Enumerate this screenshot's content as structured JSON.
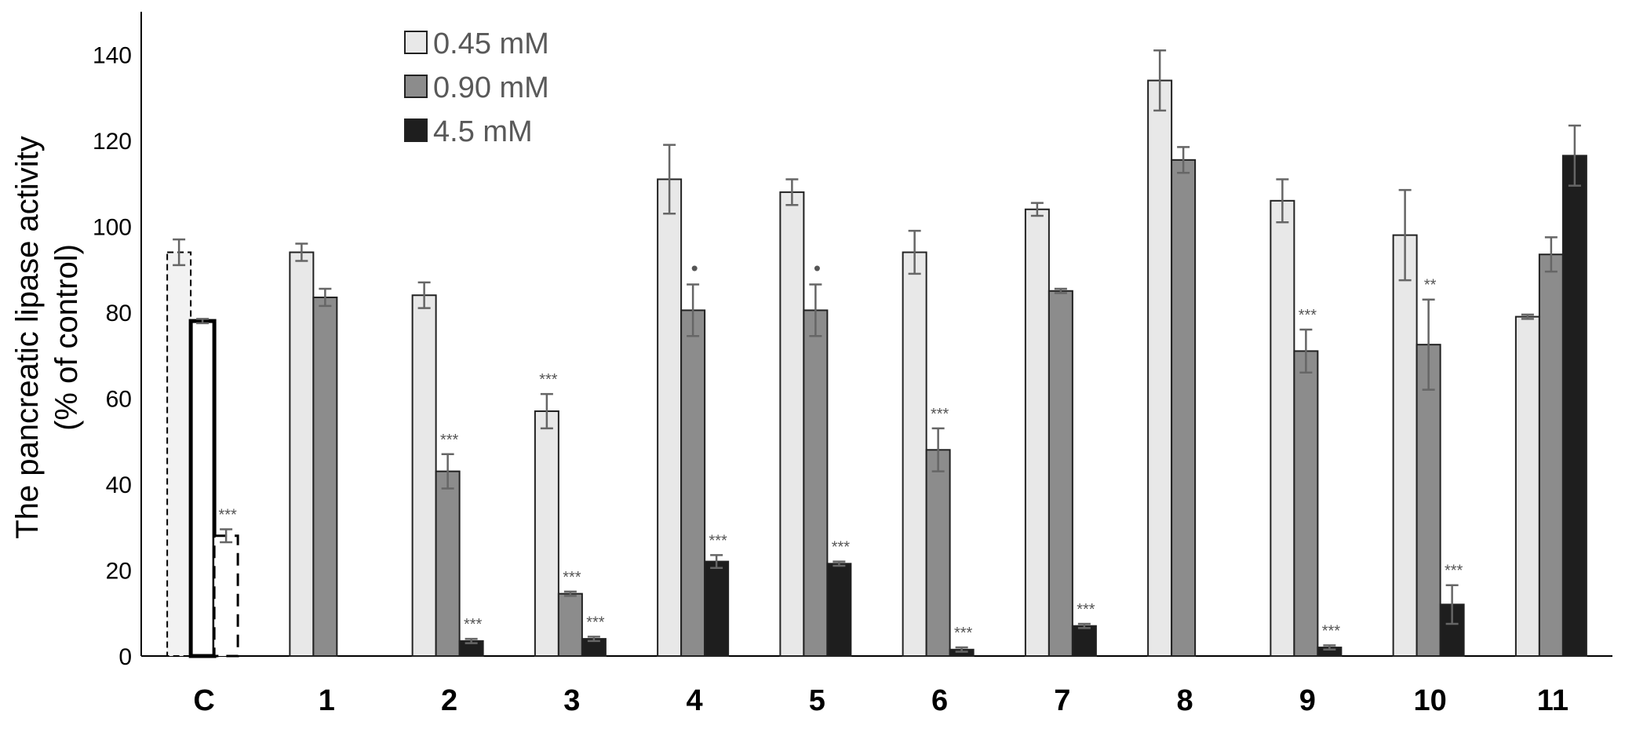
{
  "chart_data": {
    "type": "bar",
    "title": "",
    "ylabel_line1": "The pancreatic lipase activity",
    "ylabel_line2": "(% of control)",
    "xlabel": "",
    "ylim": [
      0,
      150
    ],
    "yticks": [
      0,
      20,
      40,
      60,
      80,
      100,
      120,
      140
    ],
    "grid": false,
    "legend_position": "top-left",
    "categories": [
      "C",
      "1",
      "2",
      "3",
      "4",
      "5",
      "6",
      "7",
      "8",
      "9",
      "10",
      "11"
    ],
    "series": [
      {
        "name": "0.45 mM",
        "color": "#e8e8e8",
        "values": [
          94,
          94,
          84,
          57,
          111,
          108,
          94,
          104,
          134,
          106,
          98,
          79
        ],
        "errors": [
          3,
          2,
          3,
          4,
          8,
          3,
          5,
          1.5,
          7,
          5,
          10.5,
          0.5
        ],
        "significance": [
          "",
          "",
          "",
          "***",
          "",
          "",
          "",
          "",
          "",
          "",
          "",
          ""
        ]
      },
      {
        "name": "0.90 mM",
        "color": "#8c8c8c",
        "values": [
          78,
          83.5,
          43,
          14.5,
          80.5,
          80.5,
          48,
          85,
          115.5,
          71,
          72.5,
          93.5
        ],
        "errors": [
          0.5,
          2,
          4,
          0.5,
          6,
          6,
          5,
          0.5,
          3,
          5,
          10.5,
          4
        ],
        "significance": [
          "",
          "",
          "***",
          "***",
          "•",
          "•",
          "***",
          "",
          "",
          "***",
          "**",
          ""
        ]
      },
      {
        "name": "4.5 mM",
        "color": "#1e1e1e",
        "values": [
          28,
          null,
          3.5,
          4,
          22,
          21.5,
          1.5,
          7,
          null,
          2,
          12,
          116.5
        ],
        "errors": [
          1.5,
          null,
          0.5,
          0.5,
          1.5,
          0.5,
          0.5,
          0.5,
          null,
          0.5,
          4.5,
          7
        ],
        "significance": [
          "***",
          "",
          "***",
          "***",
          "***",
          "***",
          "***",
          "***",
          "",
          "***",
          "***",
          ""
        ]
      }
    ]
  }
}
